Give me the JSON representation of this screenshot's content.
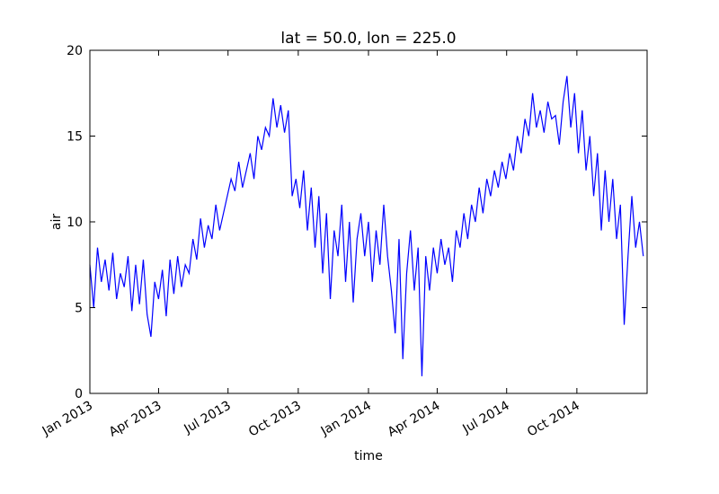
{
  "chart_data": {
    "type": "line",
    "title": "lat = 50.0, lon = 225.0",
    "xlabel": "time",
    "ylabel": "air",
    "color": "#0000ff",
    "x": [
      0,
      5,
      10,
      15,
      20,
      25,
      30,
      35,
      40,
      45,
      50,
      55,
      60,
      65,
      70,
      75,
      80,
      85,
      90,
      95,
      100,
      105,
      110,
      115,
      120,
      125,
      130,
      135,
      140,
      145,
      150,
      155,
      160,
      165,
      170,
      175,
      180,
      185,
      190,
      195,
      200,
      205,
      210,
      215,
      220,
      225,
      230,
      235,
      240,
      245,
      250,
      255,
      260,
      265,
      270,
      275,
      280,
      285,
      290,
      295,
      300,
      305,
      310,
      315,
      320,
      325,
      330,
      335,
      340,
      345,
      350,
      355,
      360,
      365,
      370,
      375,
      380,
      385,
      390,
      395,
      400,
      405,
      410,
      415,
      420,
      425,
      430,
      435,
      440,
      445,
      450,
      455,
      460,
      465,
      470,
      475,
      480,
      485,
      490,
      495,
      500,
      505,
      510,
      515,
      520,
      525,
      530,
      535,
      540,
      545,
      550,
      555,
      560,
      565,
      570,
      575,
      580,
      585,
      590,
      595,
      600,
      605,
      610,
      615,
      620,
      625,
      630,
      635,
      640,
      645,
      650,
      655,
      660,
      665,
      670,
      675,
      680,
      685,
      690,
      695,
      700,
      705,
      710,
      715,
      720,
      725
    ],
    "values": [
      7.5,
      5.0,
      8.5,
      6.5,
      7.8,
      6.0,
      8.2,
      5.5,
      7.0,
      6.2,
      8.0,
      4.8,
      7.5,
      5.2,
      7.8,
      4.6,
      3.3,
      6.5,
      5.5,
      7.2,
      4.5,
      7.8,
      5.8,
      8.0,
      6.2,
      7.5,
      7.0,
      9.0,
      7.8,
      10.2,
      8.5,
      9.8,
      9.0,
      11.0,
      9.5,
      10.5,
      11.5,
      12.5,
      11.8,
      13.5,
      12.0,
      13.0,
      14.0,
      12.5,
      15.0,
      14.2,
      15.5,
      15.0,
      17.2,
      15.5,
      16.8,
      15.2,
      16.5,
      11.5,
      12.5,
      10.8,
      13.0,
      9.5,
      12.0,
      8.5,
      11.5,
      7.0,
      10.5,
      5.5,
      9.5,
      8.0,
      11.0,
      6.5,
      10.0,
      5.3,
      9.0,
      10.5,
      8.0,
      10.0,
      6.5,
      9.5,
      7.5,
      11.0,
      8.0,
      6.0,
      3.5,
      9.0,
      2.0,
      7.0,
      9.5,
      6.0,
      8.5,
      1.0,
      8.0,
      6.0,
      8.5,
      7.0,
      9.0,
      7.5,
      8.5,
      6.5,
      9.5,
      8.5,
      10.5,
      9.0,
      11.0,
      10.0,
      12.0,
      10.5,
      12.5,
      11.5,
      13.0,
      12.0,
      13.5,
      12.5,
      14.0,
      13.0,
      15.0,
      14.0,
      16.0,
      15.0,
      17.5,
      15.5,
      16.5,
      15.2,
      17.0,
      16.0,
      16.2,
      14.5,
      17.0,
      18.5,
      15.5,
      17.5,
      14.0,
      16.5,
      13.0,
      15.0,
      11.5,
      14.0,
      9.5,
      13.0,
      10.0,
      12.5,
      9.0,
      11.0,
      4.0,
      8.0,
      11.5,
      8.5,
      10.0,
      8.0
    ],
    "xlim": [
      0,
      730
    ],
    "ylim": [
      0,
      20
    ],
    "xticks": [
      {
        "value": 0,
        "label": "Jan 2013"
      },
      {
        "value": 90,
        "label": "Apr 2013"
      },
      {
        "value": 181,
        "label": "Jul 2013"
      },
      {
        "value": 273,
        "label": "Oct 2013"
      },
      {
        "value": 365,
        "label": "Jan 2014"
      },
      {
        "value": 455,
        "label": "Apr 2014"
      },
      {
        "value": 546,
        "label": "Jul 2014"
      },
      {
        "value": 638,
        "label": "Oct 2014"
      }
    ],
    "yticks": [
      0,
      5,
      10,
      15,
      20
    ]
  }
}
